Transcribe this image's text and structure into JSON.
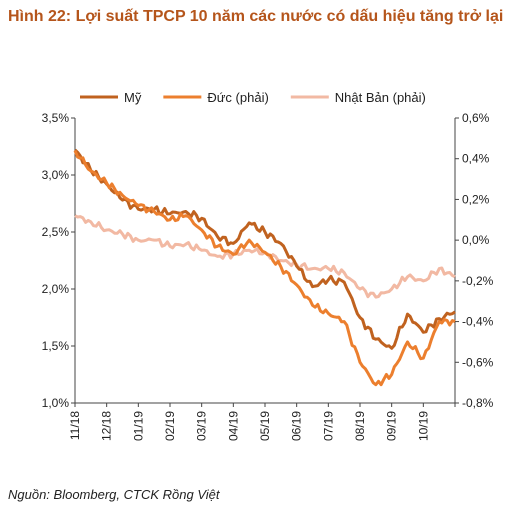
{
  "title": "Hình 22: Lợi suất TPCP 10 năm các nước có dấu hiệu tăng trở lại",
  "source": "Nguồn: Bloomberg, CTCK Rồng Việt",
  "chart_data": {
    "type": "line",
    "title": "Hình 22: Lợi suất TPCP 10 năm các nước có dấu hiệu tăng trở lại",
    "legend_position": "top",
    "grid": false,
    "x_ticks": [
      "11/18",
      "12/18",
      "01/19",
      "02/19",
      "03/19",
      "04/19",
      "05/19",
      "06/19",
      "07/19",
      "08/19",
      "09/19",
      "10/19"
    ],
    "y_left": {
      "ticks": [
        "1,0%",
        "1,5%",
        "2,0%",
        "2,5%",
        "3,0%",
        "3,5%"
      ],
      "ylim": [
        1.0,
        3.5
      ]
    },
    "y_right": {
      "ticks": [
        "-0,8%",
        "-0,6%",
        "-0,4%",
        "-0,2%",
        "0,0%",
        "0,2%",
        "0,4%",
        "0,6%"
      ],
      "ylim": [
        -0.8,
        0.6
      ]
    },
    "x": [
      0,
      0.5,
      1,
      1.5,
      2,
      2.5,
      3,
      3.5,
      4,
      4.5,
      5,
      5.5,
      6,
      6.5,
      7,
      7.5,
      8,
      8.5,
      9,
      9.5,
      10,
      10.5,
      11,
      11.5,
      12
    ],
    "series": [
      {
        "name": "Mỹ",
        "axis": "left",
        "color": "#c0621f",
        "width": 3,
        "values": [
          3.22,
          3.04,
          2.92,
          2.78,
          2.7,
          2.7,
          2.66,
          2.68,
          2.62,
          2.46,
          2.4,
          2.58,
          2.5,
          2.4,
          2.2,
          2.02,
          2.08,
          2.06,
          1.75,
          1.56,
          1.48,
          1.78,
          1.62,
          1.74,
          1.8
        ]
      },
      {
        "name": "Đức (phải)",
        "axis": "right",
        "color": "#ec7f2e",
        "width": 3,
        "values": [
          0.44,
          0.34,
          0.28,
          0.22,
          0.17,
          0.14,
          0.1,
          0.12,
          0.05,
          -0.03,
          -0.07,
          0.0,
          -0.06,
          -0.13,
          -0.22,
          -0.32,
          -0.36,
          -0.4,
          -0.6,
          -0.71,
          -0.66,
          -0.5,
          -0.58,
          -0.4,
          -0.4
        ]
      },
      {
        "name": "Nhật Bản (phải)",
        "axis": "right",
        "color": "#f2b9a3",
        "width": 3,
        "values": [
          0.12,
          0.09,
          0.05,
          0.03,
          0.0,
          0.0,
          -0.03,
          -0.02,
          -0.05,
          -0.08,
          -0.07,
          -0.05,
          -0.06,
          -0.1,
          -0.12,
          -0.14,
          -0.14,
          -0.16,
          -0.24,
          -0.28,
          -0.24,
          -0.18,
          -0.2,
          -0.14,
          -0.18
        ]
      }
    ]
  }
}
